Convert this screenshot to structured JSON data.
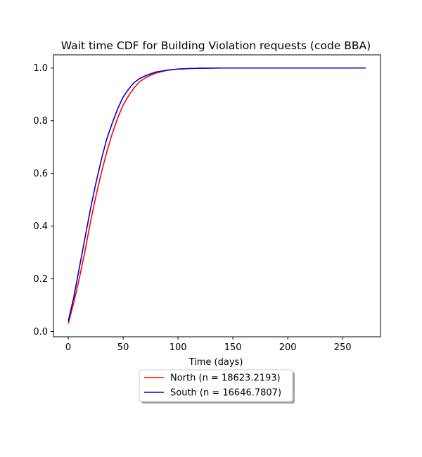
{
  "chart_data": {
    "type": "line",
    "title": "Wait time CDF for Building Violation  requests (code BBA)",
    "xlabel": "Time (days)",
    "ylabel": "",
    "xlim": [
      -13.5,
      284.5
    ],
    "ylim": [
      -0.02,
      1.05
    ],
    "xticks": [
      0,
      50,
      100,
      150,
      200,
      250
    ],
    "yticks": [
      0.0,
      0.2,
      0.4,
      0.6,
      0.8,
      1.0
    ],
    "ytick_labels": [
      "0.0",
      "0.2",
      "0.4",
      "0.6",
      "0.8",
      "1.0"
    ],
    "grid": false,
    "legend_placement": "below-center",
    "series": [
      {
        "name": "North (n = 18623.2193)",
        "color": "#ff0000",
        "x": [
          0,
          5,
          10,
          15,
          20,
          25,
          30,
          35,
          40,
          45,
          50,
          55,
          60,
          65,
          70,
          75,
          80,
          90,
          100,
          110,
          120,
          140,
          160,
          200,
          240,
          271
        ],
        "y": [
          0.03,
          0.11,
          0.2,
          0.3,
          0.41,
          0.51,
          0.6,
          0.68,
          0.75,
          0.81,
          0.86,
          0.895,
          0.925,
          0.948,
          0.962,
          0.973,
          0.981,
          0.991,
          0.996,
          0.998,
          0.999,
          1.0,
          1.0,
          1.0,
          1.0,
          1.0
        ]
      },
      {
        "name": "South (n = 16646.7807)",
        "color": "#0000cc",
        "x": [
          0,
          5,
          10,
          15,
          20,
          25,
          30,
          35,
          40,
          45,
          50,
          55,
          60,
          65,
          70,
          75,
          80,
          90,
          100,
          110,
          120,
          140,
          160,
          200,
          240,
          271
        ],
        "y": [
          0.04,
          0.13,
          0.24,
          0.35,
          0.46,
          0.56,
          0.65,
          0.73,
          0.79,
          0.845,
          0.89,
          0.92,
          0.945,
          0.96,
          0.97,
          0.978,
          0.985,
          0.992,
          0.996,
          0.998,
          0.999,
          1.0,
          1.0,
          1.0,
          1.0,
          1.0
        ]
      }
    ]
  }
}
